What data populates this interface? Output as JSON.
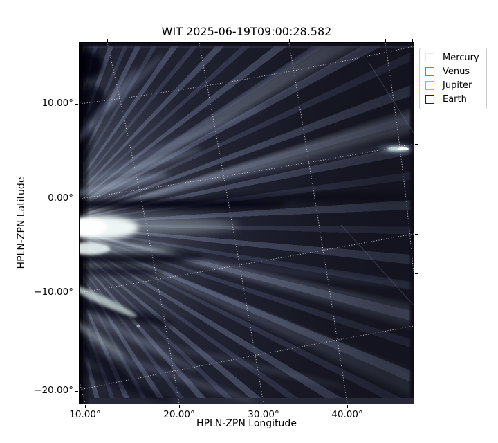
{
  "title": "WIT 2025-06-19T09:00:28.582",
  "axes": {
    "x": {
      "label": "HPLN-ZPN Longitude",
      "ticks": [
        {
          "pos": 8,
          "label": "10.00°"
        },
        {
          "pos": 144,
          "label": "20.00°"
        },
        {
          "pos": 266,
          "label": "30.00°"
        },
        {
          "pos": 387,
          "label": "40.00°"
        }
      ],
      "top_tick_positions": [
        40,
        175,
        303,
        442,
        481
      ]
    },
    "y": {
      "label": "HPLN-ZPN Latitude",
      "ticks": [
        {
          "pos": 88,
          "label": "10.00°"
        },
        {
          "pos": 225,
          "label": "0.00°"
        },
        {
          "pos": 361,
          "label": "−10.00°"
        },
        {
          "pos": 503,
          "label": "−20.00°"
        }
      ],
      "right_tick_positions": [
        146,
        276,
        333,
        410
      ]
    }
  },
  "legend": {
    "items": [
      {
        "label": "Mercury",
        "color": "#e9e9e9"
      },
      {
        "label": "Venus",
        "color": "#d2691e"
      },
      {
        "label": "Jupiter",
        "color": "#ffa500"
      },
      {
        "label": "Earth",
        "color": "#0000ff"
      }
    ]
  },
  "chart_data": {
    "type": "heatmap",
    "subtype": "white-light heliospheric image on sky coordinates",
    "title": "WIT 2025-06-19T09:00:28.582",
    "xlabel": "HPLN-ZPN Longitude",
    "ylabel": "HPLN-ZPN Latitude",
    "x_tick_labels_deg": [
      10,
      20,
      30,
      40
    ],
    "y_tick_labels_deg": [
      10,
      0,
      -10,
      -20
    ],
    "xlim_deg": [
      9.4,
      47.8
    ],
    "ylim_deg": [
      -21.3,
      16.4
    ],
    "grid": {
      "style": "dotted white curved coordinate grid",
      "longitude_lines_deg": [
        10,
        20,
        30,
        40,
        50
      ],
      "latitude_lines_deg": [
        10,
        0,
        -10,
        -20
      ]
    },
    "legend_entries": [
      "Mercury",
      "Venus",
      "Jupiter",
      "Earth"
    ],
    "colormap": "dark navy background with pale blue-white coronal streamers",
    "features": [
      {
        "name": "coronal-streamer-fan",
        "desc": "bright rays radiating from left (sunward) edge, fanning between about +45° and -50° elevation"
      },
      {
        "name": "bright-core-blob",
        "lon_deg": 10.5,
        "lat_deg": -3,
        "desc": "saturated white streamer core at left edge"
      },
      {
        "name": "secondary-bright-blob",
        "lon_deg": 10,
        "lat_deg": -5.5,
        "desc": "second bright knot below core"
      },
      {
        "name": "dark-lane",
        "lat_deg": -1,
        "desc": "black lane just above streamer core extending right"
      },
      {
        "name": "planet-saturation-streak",
        "lon_deg": 47,
        "lat_deg": 0.5,
        "desc": "bright horizontal saturated streak at right edge near 0° latitude"
      },
      {
        "name": "faint-point-source",
        "lon_deg": 16.5,
        "lat_deg": -13.5,
        "desc": "small pale dot"
      },
      {
        "name": "satellite-trails",
        "desc": "two very faint diagonal streaks on right half"
      }
    ]
  }
}
